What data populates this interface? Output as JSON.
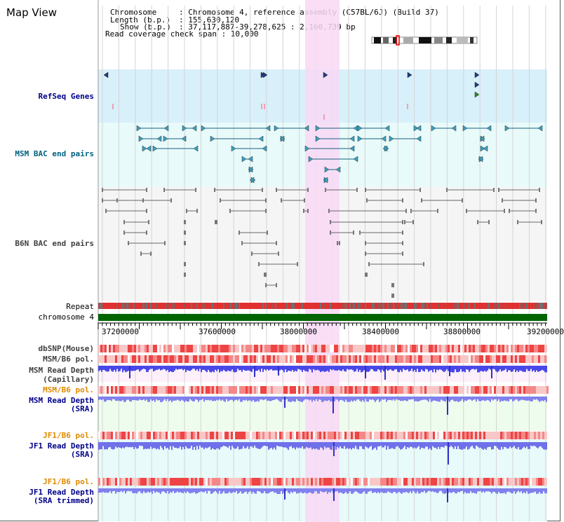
{
  "app": {
    "title": "Map View"
  },
  "info": {
    "chromosome_label": "Chromosome",
    "chromosome_value": ": Chromosome 4, reference assembly (C57BL/6J) (Build 37)",
    "length_label": "Length (b.p.)",
    "length_value": ": 155,630,120",
    "show_label": "Show (b.p.)",
    "show_value": ": 37,117,887-39,278,625 : 2,160,739 bp",
    "coverage_text": "Read coverage check span : 10,000"
  },
  "tracks": {
    "refseq": "RefSeq Genes",
    "msm_bac": "MSM BAC end pairs",
    "b6n_bac": "B6N BAC end pairs",
    "repeat": "Repeat",
    "chromosome": "chromosome 4",
    "dbsnp": "dbSNP(Mouse)",
    "msm_b6_pol_1": "MSM/B6 pol.",
    "msm_depth_cap_1": "MSM Read Depth",
    "msm_depth_cap_2": "(Capillary)",
    "msm_b6_pol_2": "MSM/B6 pol.",
    "msm_depth_sra_1": "MSM Read Depth",
    "msm_depth_sra_2": "(SRA)",
    "jf1_b6_pol_1": "JF1/B6 pol.",
    "jf1_depth_sra_1": "JF1 Read Depth",
    "jf1_depth_sra_2": "(SRA)",
    "jf1_b6_pol_2": "JF1/B6 pol.",
    "jf1_depth_trim_1": "JF1 Read Depth",
    "jf1_depth_trim_2": "(SRA trimmed)"
  },
  "axis": {
    "ticks": [
      "37200000",
      "37600000",
      "38000000",
      "38400000",
      "38800000",
      "39200000"
    ]
  },
  "colors": {
    "refseq_bg": "#d8f0fa",
    "msm_bg": "#e8fafa",
    "b6n_bg": "#f5f5f5",
    "highlight": "#f8d8f4",
    "chromosome_bar": "#006400",
    "depth_blue": "#6060ee",
    "depth_light": "#8c8cf0"
  }
}
